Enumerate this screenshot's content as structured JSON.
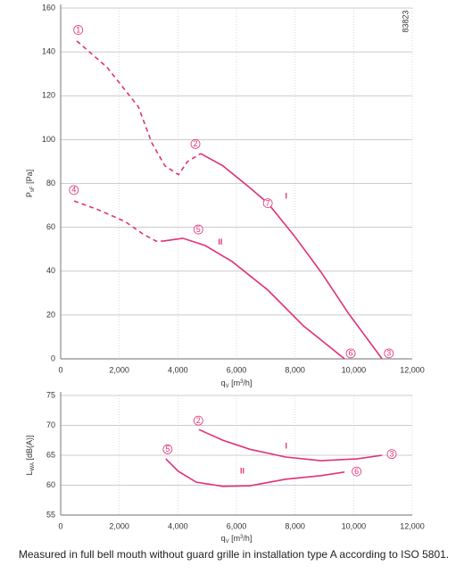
{
  "chart_data": [
    {
      "type": "line",
      "ylabel": [
        "P",
        "sF",
        " [Pa]"
      ],
      "xlabel": [
        "q",
        "V",
        " [m",
        "3",
        "/h]"
      ],
      "code": "83823",
      "xlim": [
        0,
        12000
      ],
      "xticks": [
        0,
        {
          "value": 2000,
          "label": "2,000"
        },
        {
          "value": 4000,
          "label": "4,000"
        },
        {
          "value": 6000,
          "label": "6,000"
        },
        {
          "value": 8000,
          "label": "8,000"
        },
        {
          "value": 10000,
          "label": "10,000"
        },
        {
          "value": 12000,
          "label": "12,000"
        }
      ],
      "ylim": [
        0,
        160
      ],
      "yticks": [
        0,
        20,
        40,
        60,
        80,
        100,
        120,
        140,
        160
      ],
      "grid": true,
      "series": [
        {
          "color": "#e0307a",
          "dashed": true,
          "x": [
            550,
            1580,
            2650,
            3110,
            3560,
            4020,
            4330,
            4780
          ],
          "values": [
            145,
            133,
            115,
            98.5,
            88,
            84,
            90,
            93.6
          ]
        },
        {
          "name": "I",
          "color": "#e0307a",
          "x": [
            4780,
            5540,
            6460,
            7070,
            7980,
            8890,
            9810,
            10970
          ],
          "values": [
            93.6,
            88,
            78,
            71,
            56,
            39.5,
            21,
            0
          ]
        },
        {
          "color": "#e0307a",
          "dashed": true,
          "x": [
            460,
            1280,
            2190,
            2800,
            3260,
            3500
          ],
          "values": [
            72,
            68,
            62.7,
            57,
            53.7,
            53.7
          ]
        },
        {
          "name": "II",
          "color": "#e0307a",
          "x": [
            3500,
            4170,
            4930,
            5850,
            7070,
            8290,
            9690
          ],
          "values": [
            53.7,
            55,
            51.7,
            44.4,
            31.4,
            15,
            0
          ]
        }
      ],
      "point_labels": [
        "1",
        "2",
        "7",
        "3",
        "4",
        "5",
        "6"
      ]
    },
    {
      "type": "line",
      "ylabel": [
        "L",
        "WA",
        " [dB(A)]"
      ],
      "xlabel": [
        "q",
        "V",
        " [m",
        "3",
        "/h]"
      ],
      "xlim": [
        0,
        12000
      ],
      "xticks": [
        0,
        {
          "value": 2000,
          "label": "2,000"
        },
        {
          "value": 4000,
          "label": "4,000"
        },
        {
          "value": 6000,
          "label": "6,000"
        },
        {
          "value": 8000,
          "label": "8,000"
        },
        {
          "value": 10000,
          "label": "10,000"
        },
        {
          "value": 12000,
          "label": "12,000"
        }
      ],
      "ylim": [
        55,
        75
      ],
      "yticks": [
        55,
        60,
        65,
        70,
        75
      ],
      "grid": true,
      "series": [
        {
          "name": "I",
          "color": "#e0307a",
          "x": [
            4720,
            5540,
            6460,
            7680,
            8890,
            10110,
            10970
          ],
          "values": [
            69.3,
            67.5,
            66.0,
            64.7,
            64.1,
            64.4,
            65.0
          ]
        },
        {
          "name": "II",
          "color": "#e0307a",
          "x": [
            3590,
            4020,
            4630,
            5540,
            6460,
            7680,
            8890,
            9690
          ],
          "values": [
            64.4,
            62.3,
            60.5,
            59.8,
            59.9,
            61.0,
            61.6,
            62.2
          ]
        }
      ],
      "point_labels": [
        "2",
        "3",
        "5",
        "6"
      ]
    }
  ],
  "footnote": "Measured in full bell mouth without guard grille in installation type A according to ISO 5801."
}
